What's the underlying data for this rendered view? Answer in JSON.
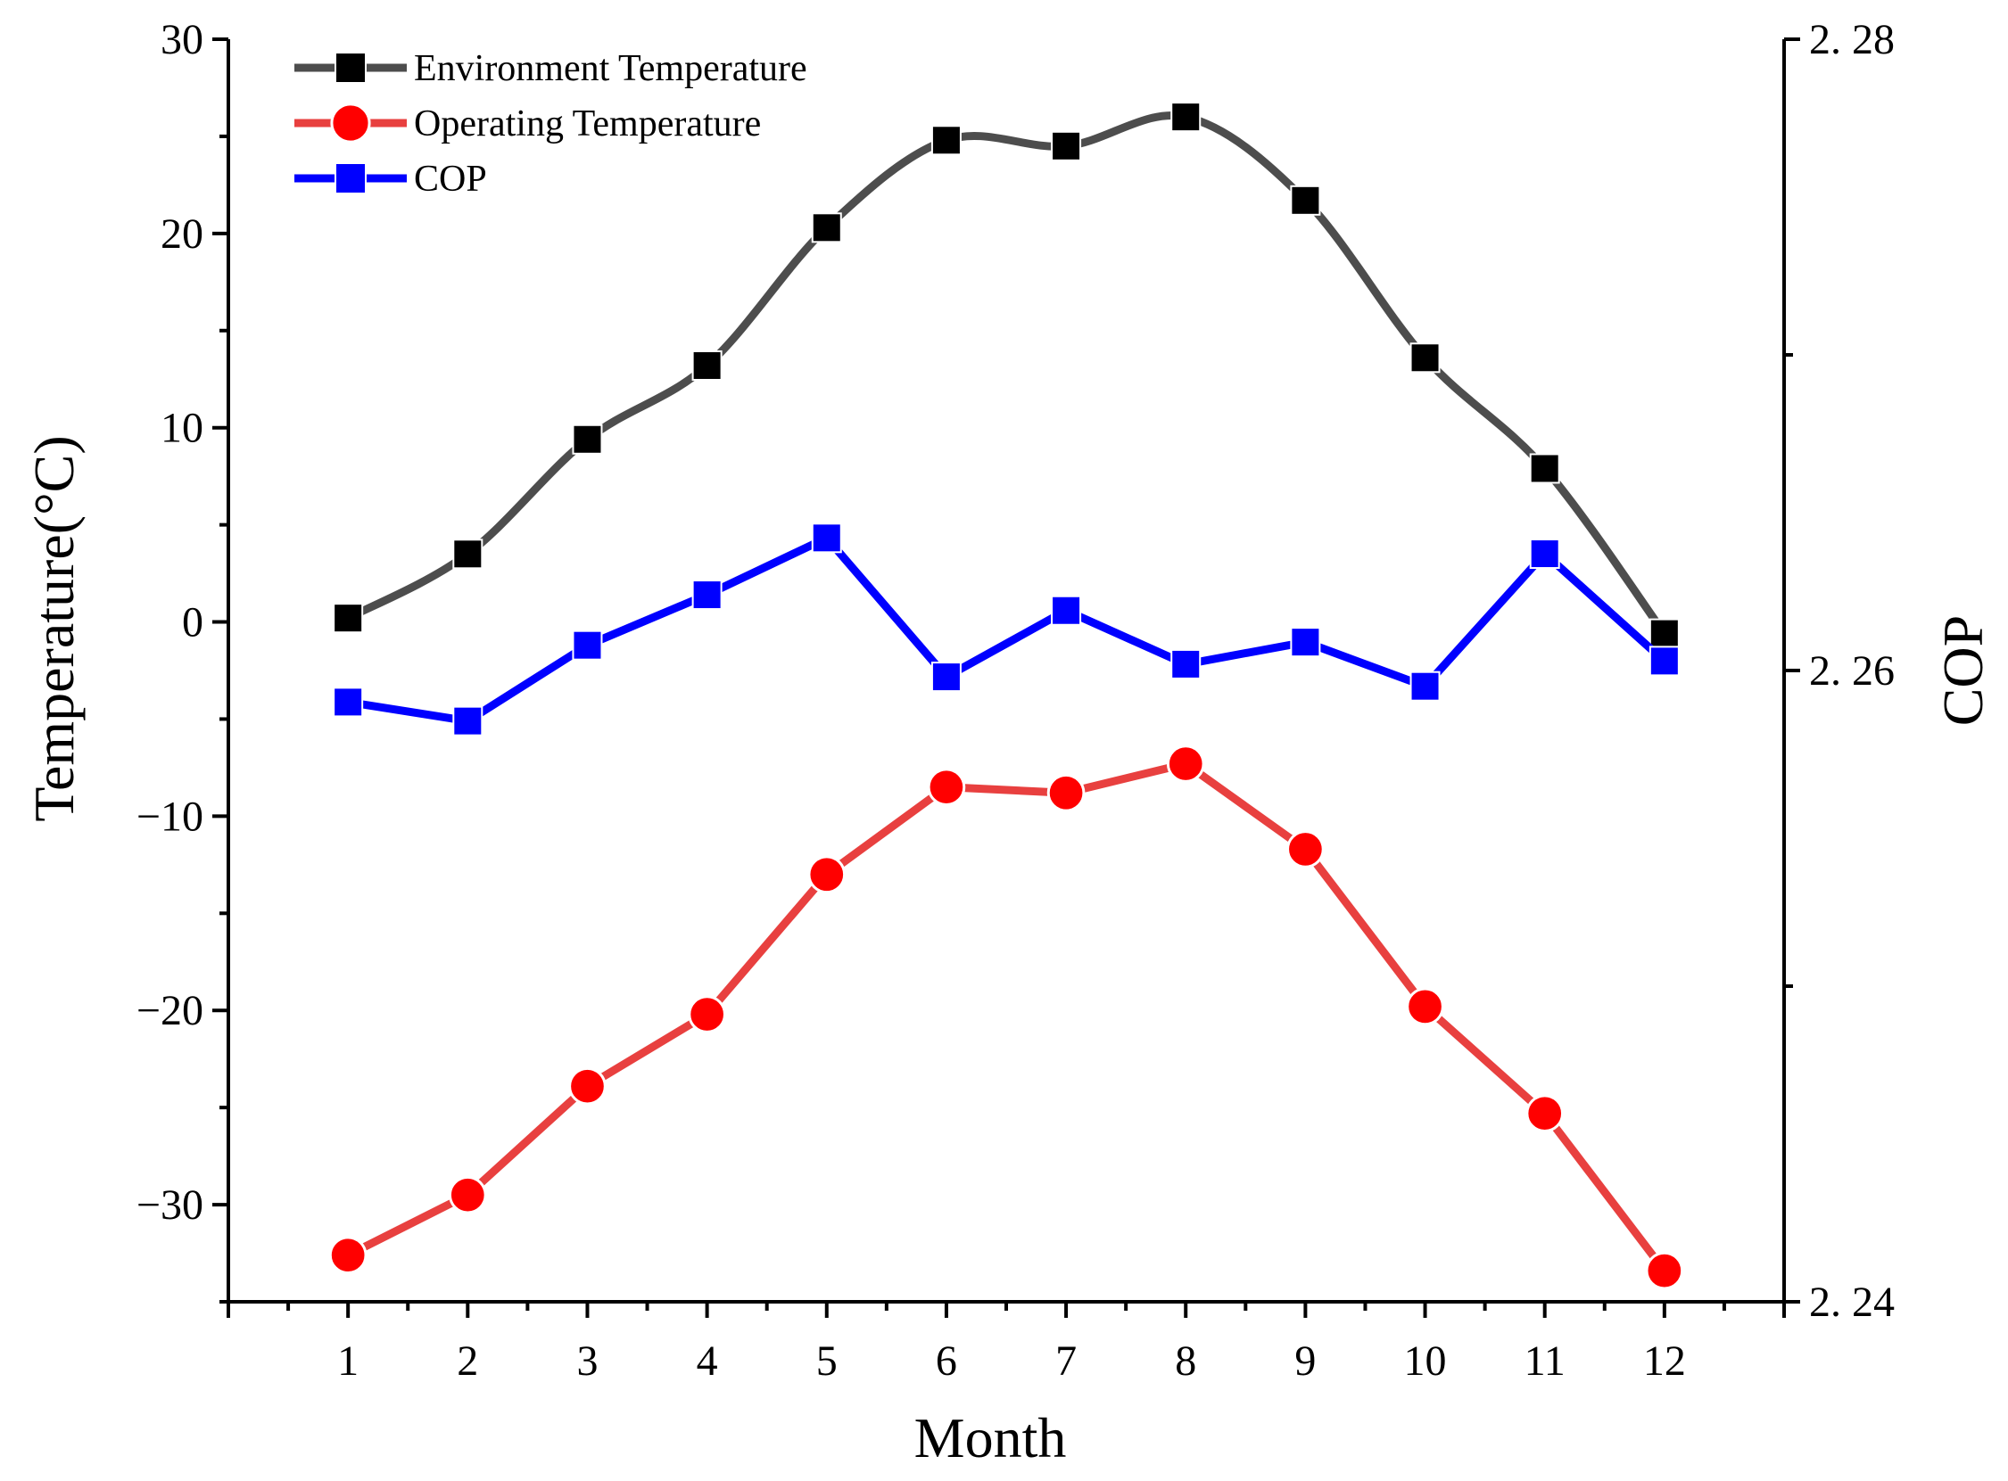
{
  "chart_data": {
    "type": "line",
    "title": "",
    "xlabel": "Month",
    "ylabel": "Temperature(°C)",
    "y2label": "COP",
    "x": [
      1,
      2,
      3,
      4,
      5,
      6,
      7,
      8,
      9,
      10,
      11,
      12
    ],
    "x_ticks": [
      "1",
      "2",
      "3",
      "4",
      "5",
      "6",
      "7",
      "8",
      "9",
      "10",
      "11",
      "12"
    ],
    "xlim": [
      0,
      13
    ],
    "ylim": [
      -35,
      30
    ],
    "y_ticks": [
      "30",
      "20",
      "10",
      "0",
      "−10",
      "−20",
      "−30"
    ],
    "y2lim": [
      2.24,
      2.28
    ],
    "y2_ticks": [
      "2. 28",
      "2. 26",
      "2. 24"
    ],
    "legend_position": "top-left",
    "series": [
      {
        "name": "Environment Temperature",
        "axis": "left",
        "color": "#4d4d4d",
        "marker_color": "#000000",
        "marker": "square",
        "smooth": true,
        "values": [
          0.2,
          3.5,
          9.4,
          13.2,
          20.3,
          24.8,
          24.5,
          26.0,
          21.7,
          13.6,
          7.9,
          -0.6
        ]
      },
      {
        "name": "Operating Temperature",
        "axis": "left",
        "color": "#e8403f",
        "marker_color": "#ff0000",
        "marker": "circle",
        "smooth": false,
        "values": [
          -32.6,
          -29.5,
          -23.9,
          -20.2,
          -13.0,
          -8.5,
          -8.8,
          -7.3,
          -11.7,
          -19.8,
          -25.3,
          -33.4
        ]
      },
      {
        "name": "COP",
        "axis": "right",
        "color": "#0000ff",
        "marker_color": "#0000ff",
        "marker": "square",
        "smooth": false,
        "values": [
          2.259,
          2.2584,
          2.2608,
          2.2624,
          2.2642,
          2.2598,
          2.2619,
          2.2602,
          2.2609,
          2.2595,
          2.2637,
          2.2603
        ]
      }
    ]
  }
}
